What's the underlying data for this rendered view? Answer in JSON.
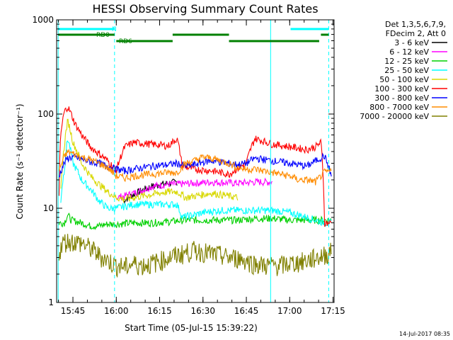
{
  "chart_data": {
    "type": "line",
    "title": "HESSI Observing Summary Count Rates",
    "xlabel": "Start Time (05-Jul-15 15:39:22)",
    "ylabel": "Count Rate (s⁻¹ detector⁻¹)",
    "xlim": [
      15.656,
      17.256
    ],
    "ylim": [
      1,
      1000
    ],
    "y_scale": "log",
    "grid": false,
    "x_ticks": [
      {
        "value": 15.75,
        "label": "15:45"
      },
      {
        "value": 16.0,
        "label": "16:00"
      },
      {
        "value": 16.25,
        "label": "16:15"
      },
      {
        "value": 16.5,
        "label": "16:30"
      },
      {
        "value": 16.75,
        "label": "16:45"
      },
      {
        "value": 17.0,
        "label": "17:00"
      },
      {
        "value": 17.25,
        "label": "17:15"
      }
    ],
    "y_ticks": [
      {
        "value": 1,
        "label": "1"
      },
      {
        "value": 10,
        "label": "10"
      },
      {
        "value": 100,
        "label": "100"
      },
      {
        "value": 1000,
        "label": "1000"
      }
    ],
    "legend": {
      "placement": "right",
      "header": [
        "Det 1,3,5,6,7,9,",
        "FDecim 2, Att 0"
      ]
    },
    "series": [
      {
        "name": "3 - 6 keV",
        "color": "#000000",
        "x": [
          16.04,
          16.1,
          16.2,
          16.3,
          16.35
        ],
        "y": [
          12,
          14,
          17,
          18.5,
          19
        ]
      },
      {
        "name": "6 - 12 keV",
        "color": "#ff00ff",
        "x": [
          16.0,
          16.05,
          16.1,
          16.15,
          16.2,
          16.3,
          16.35,
          16.45,
          16.55,
          16.7,
          16.8,
          16.9
        ],
        "y": [
          13,
          13.5,
          14.5,
          15.5,
          17,
          18,
          18,
          18.5,
          19,
          18.5,
          19,
          19
        ]
      },
      {
        "name": "12 - 25 keV",
        "color": "#00d000",
        "x": [
          15.67,
          15.7,
          15.72,
          15.74,
          15.8,
          15.85,
          15.9,
          15.95,
          16.0,
          16.1,
          16.2,
          16.3,
          16.4,
          16.5,
          16.6,
          16.7,
          16.8,
          16.9,
          17.0,
          17.1,
          17.2,
          17.24
        ],
        "y": [
          7,
          7,
          8.5,
          7.5,
          7,
          6.5,
          6.5,
          6.8,
          6.8,
          7,
          7,
          7.2,
          7.5,
          7.5,
          7.5,
          7.5,
          7.8,
          7.8,
          7.5,
          7.5,
          7.5,
          7.5
        ]
      },
      {
        "name": "25 - 50 keV",
        "color": "#00ffff",
        "x": [
          15.68,
          15.7,
          15.72,
          15.75,
          15.8,
          15.85,
          15.9,
          15.95,
          16.0,
          16.05,
          16.1,
          16.2,
          16.3,
          16.35,
          16.38,
          16.4,
          16.45,
          16.5,
          16.6,
          16.7,
          16.8,
          16.9,
          17.0,
          17.1,
          17.2,
          17.24
        ],
        "y": [
          12,
          25,
          55,
          30,
          20,
          16,
          12,
          10,
          10,
          10.5,
          11,
          11,
          11,
          11,
          8,
          8.2,
          8.5,
          9,
          9.5,
          9.5,
          9.5,
          9.5,
          9,
          8,
          7,
          7
        ]
      },
      {
        "name": "50 - 100 keV",
        "color": "#d8d800",
        "x": [
          15.68,
          15.7,
          15.72,
          15.75,
          15.8,
          15.85,
          15.9,
          15.95,
          16.0,
          16.05,
          16.1,
          16.2,
          16.3,
          16.35,
          16.4,
          16.45,
          16.5,
          16.55,
          16.6,
          16.65,
          16.7
        ],
        "y": [
          15,
          45,
          85,
          50,
          30,
          22,
          18,
          15,
          13,
          12.5,
          13,
          14,
          15,
          15,
          13,
          13.5,
          14,
          14.5,
          14,
          13.5,
          13
        ]
      },
      {
        "name": "100 - 300 keV",
        "color": "#ff0000",
        "x": [
          15.67,
          15.68,
          15.7,
          15.72,
          15.74,
          15.76,
          15.8,
          15.85,
          15.9,
          15.95,
          16.0,
          16.05,
          16.1,
          16.2,
          16.3,
          16.35,
          16.38,
          16.45,
          16.55,
          16.65,
          16.75,
          16.8,
          16.9,
          17.0,
          17.1,
          17.15,
          17.18,
          17.2,
          17.24
        ],
        "y": [
          13,
          60,
          105,
          120,
          100,
          80,
          60,
          45,
          38,
          32,
          25,
          45,
          50,
          48,
          46,
          55,
          28,
          26,
          25,
          23,
          30,
          55,
          48,
          45,
          42,
          45,
          50,
          7,
          7
        ]
      },
      {
        "name": "300 - 800 keV",
        "color": "#0000ff",
        "x": [
          15.67,
          15.7,
          15.72,
          15.75,
          15.8,
          15.85,
          15.9,
          15.95,
          16.0,
          16.05,
          16.1,
          16.2,
          16.3,
          16.35,
          16.4,
          16.45,
          16.5,
          16.55,
          16.6,
          16.65,
          16.7,
          16.75,
          16.8,
          16.9,
          17.0,
          17.1,
          17.15,
          17.2,
          17.24
        ],
        "y": [
          22,
          30,
          34,
          35,
          33,
          31,
          30,
          28,
          26,
          25,
          26,
          28,
          29,
          30,
          28,
          29,
          31,
          32,
          31,
          30,
          29,
          30,
          34,
          32,
          30,
          28,
          32,
          36,
          22
        ]
      },
      {
        "name": "800 - 7000 keV",
        "color": "#ff8c00",
        "x": [
          15.67,
          15.7,
          15.72,
          15.75,
          15.8,
          15.85,
          15.9,
          15.95,
          16.0,
          16.05,
          16.1,
          16.2,
          16.3,
          16.35,
          16.4,
          16.45,
          16.5,
          16.55,
          16.6,
          16.65,
          16.7,
          16.75,
          16.8,
          16.9,
          17.0,
          17.05,
          17.1,
          17.15,
          17.2,
          17.24
        ],
        "y": [
          25,
          35,
          40,
          38,
          35,
          33,
          30,
          27,
          22,
          21,
          22,
          23,
          24,
          24,
          30,
          32,
          35,
          34,
          32,
          30,
          27,
          26,
          26,
          24,
          22,
          20,
          20,
          19,
          24,
          25
        ]
      },
      {
        "name": "7000 - 20000 keV",
        "color": "#808000",
        "x": [
          15.67,
          15.7,
          15.75,
          15.8,
          15.85,
          15.9,
          15.95,
          16.0,
          16.05,
          16.1,
          16.15,
          16.2,
          16.25,
          16.3,
          16.35,
          16.4,
          16.45,
          16.5,
          16.55,
          16.6,
          16.65,
          16.7,
          16.75,
          16.8,
          16.85,
          16.9,
          16.95,
          17.0,
          17.05,
          17.1,
          17.15,
          17.2,
          17.24
        ],
        "y": [
          3.5,
          4.5,
          4.5,
          4.3,
          3.8,
          3.2,
          2.8,
          2.5,
          2.4,
          2.6,
          2.5,
          2.6,
          2.8,
          3.0,
          3.2,
          3.4,
          3.6,
          3.5,
          3.3,
          3.2,
          3.0,
          3.0,
          2.8,
          2.6,
          2.5,
          2.5,
          2.5,
          2.6,
          2.7,
          2.8,
          3.0,
          3.2,
          3.5
        ]
      }
    ],
    "annotations": {
      "vlines_solid": [
        15.665,
        16.89
      ],
      "vlines_dashed": [
        15.99,
        17.225
      ],
      "bars": [
        {
          "label": "N",
          "color": "#00ffff",
          "segments": [
            [
              15.665,
              15.99
            ],
            [
              17.005,
              17.225
            ]
          ]
        },
        {
          "label": "RD0",
          "color": "#008000",
          "segments": [
            [
              15.665,
              15.99
            ],
            [
              16.0,
              16.325
            ],
            [
              16.325,
              16.65
            ],
            [
              16.65,
              17.17
            ],
            [
              17.18,
              17.225
            ]
          ]
        },
        {
          "label": "RD6",
          "color": "#008000",
          "segments": []
        }
      ]
    },
    "footer_date": "14-Jul-2017 08:35"
  }
}
